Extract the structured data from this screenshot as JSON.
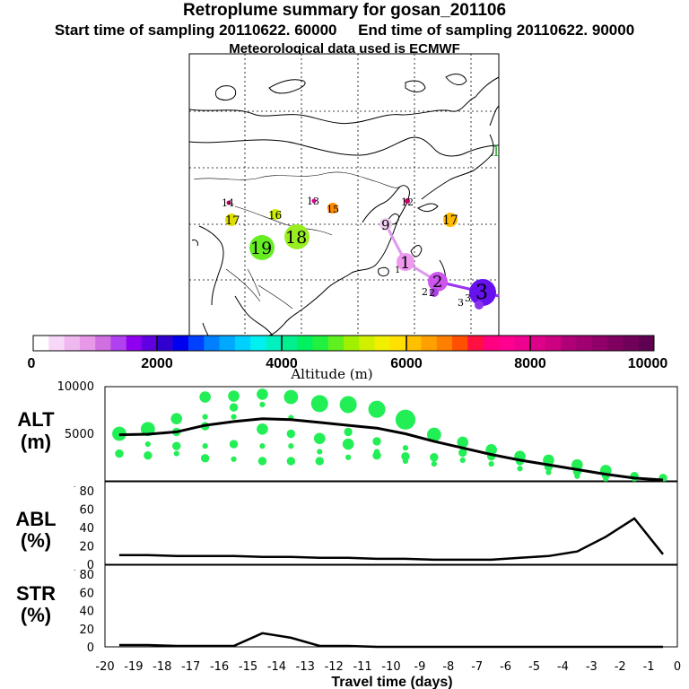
{
  "header": {
    "title": "Retroplume summary for gosan_201106",
    "sampling_line": "Start time of sampling 20110622. 60000     End time of sampling 20110622. 90000",
    "met_line": "Meteorological data used is ECMWF"
  },
  "colors": {
    "marker": "#22ee55",
    "line": "#000000"
  },
  "map": {
    "labels": [
      {
        "text": "1",
        "color": "#33cc33"
      },
      {
        "text": "14",
        "color": "#cc0066"
      },
      {
        "text": "12",
        "color": "#cc0066"
      },
      {
        "text": "16",
        "color": "#ccee00"
      },
      {
        "text": "15",
        "color": "#ff8800"
      },
      {
        "text": "13",
        "color": "#dd0099"
      },
      {
        "text": "17",
        "color": "#dddd00"
      },
      {
        "text": "17",
        "color": "#ffbb00"
      },
      {
        "text": "9",
        "color": "#eeccee"
      },
      {
        "text": "19",
        "color": "#66ee22"
      },
      {
        "text": "18",
        "color": "#99ee22"
      },
      {
        "text": "1",
        "color": "#ee99ee"
      },
      {
        "text": "1",
        "color": "#ffffff"
      },
      {
        "text": "2",
        "color": "#cc55ee"
      },
      {
        "text": "2",
        "color": "#cc55ee"
      },
      {
        "text": "2",
        "color": "#aa44dd"
      },
      {
        "text": "3",
        "color": "#6611ee"
      },
      {
        "text": "3",
        "color": "#6611ee"
      },
      {
        "text": "3",
        "color": "#ffffff"
      }
    ]
  },
  "colorbar": {
    "ticks": [
      "0",
      "2000",
      "4000",
      "6000",
      "8000",
      "10000"
    ],
    "label": "Altitude (m)",
    "colors": [
      "#ffffff",
      "#f8d8f8",
      "#f0b8f0",
      "#e898e8",
      "#d070e0",
      "#b040f0",
      "#9000f0",
      "#6000e0",
      "#3000d0",
      "#0000f0",
      "#0040ff",
      "#0080ff",
      "#00a8ff",
      "#00d0ff",
      "#00f0f0",
      "#00f0c0",
      "#00f090",
      "#00f060",
      "#20f040",
      "#60f020",
      "#a0f000",
      "#d0f000",
      "#f0f000",
      "#ffe000",
      "#ffc000",
      "#ffa000",
      "#ff8000",
      "#ff5000",
      "#ff1040",
      "#ff0080",
      "#ff0090",
      "#ee0090",
      "#dd0088",
      "#cc0080",
      "#b00078",
      "#a00070",
      "#900068",
      "#800060",
      "#700058",
      "#600050"
    ]
  },
  "chart_data": [
    {
      "type": "scatter",
      "title": "ALT (m)",
      "ylabel": "ALT\n(m)",
      "ylim": [
        0,
        10000
      ],
      "yticks": [
        "5000",
        "10000"
      ],
      "line": {
        "x": [
          -19.5,
          -18.5,
          -17.5,
          -16.5,
          -15.5,
          -14.5,
          -13.5,
          -12.5,
          -11.5,
          -10.5,
          -9.5,
          -8.5,
          -7.5,
          -6.5,
          -5.5,
          -4.5,
          -3.5,
          -2.5,
          -1.5,
          -0.5
        ],
        "y": [
          4900,
          4950,
          5200,
          5900,
          6300,
          6600,
          6500,
          6200,
          5900,
          5600,
          5000,
          4200,
          3500,
          2800,
          2200,
          1700,
          1200,
          700,
          300,
          100
        ]
      },
      "markers": [
        {
          "x": -19.5,
          "y": 5000,
          "size": 4
        },
        {
          "x": -19.5,
          "y": 2900,
          "size": 2
        },
        {
          "x": -18.5,
          "y": 5500,
          "size": 4
        },
        {
          "x": -18.5,
          "y": 2700,
          "size": 2
        },
        {
          "x": -18.5,
          "y": 3900,
          "size": 1
        },
        {
          "x": -17.5,
          "y": 6600,
          "size": 3
        },
        {
          "x": -17.5,
          "y": 3700,
          "size": 2
        },
        {
          "x": -17.5,
          "y": 2900,
          "size": 1
        },
        {
          "x": -17.5,
          "y": 5200,
          "size": 2
        },
        {
          "x": -16.5,
          "y": 8900,
          "size": 3
        },
        {
          "x": -16.5,
          "y": 5800,
          "size": 2
        },
        {
          "x": -16.5,
          "y": 3700,
          "size": 1
        },
        {
          "x": -16.5,
          "y": 2400,
          "size": 2
        },
        {
          "x": -16.5,
          "y": 6800,
          "size": 1
        },
        {
          "x": -15.5,
          "y": 9000,
          "size": 3
        },
        {
          "x": -15.5,
          "y": 7800,
          "size": 2
        },
        {
          "x": -15.5,
          "y": 6800,
          "size": 1
        },
        {
          "x": -15.5,
          "y": 3900,
          "size": 2
        },
        {
          "x": -15.5,
          "y": 2300,
          "size": 1
        },
        {
          "x": -14.5,
          "y": 9200,
          "size": 3
        },
        {
          "x": -14.5,
          "y": 8100,
          "size": 1
        },
        {
          "x": -14.5,
          "y": 5500,
          "size": 3
        },
        {
          "x": -14.5,
          "y": 3700,
          "size": 1
        },
        {
          "x": -14.5,
          "y": 2100,
          "size": 2
        },
        {
          "x": -13.5,
          "y": 8900,
          "size": 4
        },
        {
          "x": -13.5,
          "y": 6700,
          "size": 1
        },
        {
          "x": -13.5,
          "y": 5000,
          "size": 2
        },
        {
          "x": -13.5,
          "y": 3700,
          "size": 1
        },
        {
          "x": -13.5,
          "y": 2100,
          "size": 2
        },
        {
          "x": -12.5,
          "y": 8200,
          "size": 5
        },
        {
          "x": -12.5,
          "y": 4500,
          "size": 3
        },
        {
          "x": -12.5,
          "y": 3100,
          "size": 1
        },
        {
          "x": -12.5,
          "y": 2100,
          "size": 2
        },
        {
          "x": -11.5,
          "y": 8100,
          "size": 5
        },
        {
          "x": -11.5,
          "y": 5200,
          "size": 2
        },
        {
          "x": -11.5,
          "y": 3900,
          "size": 3
        },
        {
          "x": -11.5,
          "y": 2500,
          "size": 1
        },
        {
          "x": -10.5,
          "y": 7600,
          "size": 5
        },
        {
          "x": -10.5,
          "y": 4200,
          "size": 2
        },
        {
          "x": -10.5,
          "y": 3100,
          "size": 1
        },
        {
          "x": -10.5,
          "y": 2700,
          "size": 2
        },
        {
          "x": -9.5,
          "y": 6500,
          "size": 6
        },
        {
          "x": -9.5,
          "y": 3500,
          "size": 1
        },
        {
          "x": -9.5,
          "y": 2600,
          "size": 2
        },
        {
          "x": -9.5,
          "y": 2100,
          "size": 1
        },
        {
          "x": -8.5,
          "y": 4900,
          "size": 4
        },
        {
          "x": -8.5,
          "y": 2500,
          "size": 2
        },
        {
          "x": -8.5,
          "y": 1800,
          "size": 1
        },
        {
          "x": -7.5,
          "y": 4100,
          "size": 3
        },
        {
          "x": -7.5,
          "y": 3000,
          "size": 2
        },
        {
          "x": -7.5,
          "y": 2200,
          "size": 1
        },
        {
          "x": -6.5,
          "y": 3300,
          "size": 3
        },
        {
          "x": -6.5,
          "y": 2600,
          "size": 2
        },
        {
          "x": -6.5,
          "y": 1800,
          "size": 1
        },
        {
          "x": -5.5,
          "y": 2600,
          "size": 3
        },
        {
          "x": -5.5,
          "y": 2100,
          "size": 2
        },
        {
          "x": -5.5,
          "y": 1300,
          "size": 1
        },
        {
          "x": -4.5,
          "y": 2200,
          "size": 3
        },
        {
          "x": -4.5,
          "y": 1500,
          "size": 2
        },
        {
          "x": -4.5,
          "y": 900,
          "size": 1
        },
        {
          "x": -3.5,
          "y": 1700,
          "size": 3
        },
        {
          "x": -3.5,
          "y": 1000,
          "size": 2
        },
        {
          "x": -3.5,
          "y": 500,
          "size": 1
        },
        {
          "x": -2.5,
          "y": 1100,
          "size": 3
        },
        {
          "x": -2.5,
          "y": 600,
          "size": 2
        },
        {
          "x": -2.5,
          "y": 200,
          "size": 1
        },
        {
          "x": -1.5,
          "y": 500,
          "size": 2
        },
        {
          "x": -1.5,
          "y": 200,
          "size": 1
        },
        {
          "x": -0.5,
          "y": 300,
          "size": 2
        }
      ]
    },
    {
      "type": "line",
      "title": "ABL (%)",
      "ylabel": "ABL\n(%)",
      "ylim": [
        0,
        90
      ],
      "yticks": [
        "0",
        "20",
        "40",
        "60",
        "80"
      ],
      "x": [
        -19.5,
        -18.5,
        -17.5,
        -16.5,
        -15.5,
        -14.5,
        -13.5,
        -12.5,
        -11.5,
        -10.5,
        -9.5,
        -8.5,
        -7.5,
        -6.5,
        -5.5,
        -4.5,
        -3.5,
        -2.5,
        -1.5,
        -0.5
      ],
      "y": [
        10,
        10,
        9,
        9,
        9,
        8,
        8,
        7,
        7,
        6,
        6,
        5,
        5,
        5,
        7,
        9,
        14,
        30,
        50,
        11
      ]
    },
    {
      "type": "line",
      "title": "STR (%)",
      "ylabel": "STR\n(%)",
      "xlabel": "Travel time (days)",
      "ylim": [
        0,
        90
      ],
      "yticks": [
        "0",
        "20",
        "40",
        "60",
        "80"
      ],
      "xticks": [
        "-20",
        "-19",
        "-18",
        "-17",
        "-16",
        "-15",
        "-14",
        "-13",
        "-12",
        "-11",
        "-10",
        "-9",
        "-8",
        "-7",
        "-6",
        "-5",
        "-4",
        "-3",
        "-2",
        "-1",
        "0"
      ],
      "x": [
        -19.5,
        -18.5,
        -17.5,
        -16.5,
        -15.5,
        -14.5,
        -13.5,
        -12.5,
        -11.5,
        -10.5,
        -9.5,
        -8.5,
        -7.5,
        -6.5,
        -5.5,
        -4.5,
        -3.5,
        -2.5,
        -1.5,
        -0.5
      ],
      "y": [
        2,
        2,
        1,
        1,
        1,
        15,
        10,
        1,
        1,
        0,
        0,
        0,
        0,
        0,
        0,
        0,
        0,
        0,
        0,
        0
      ]
    }
  ]
}
